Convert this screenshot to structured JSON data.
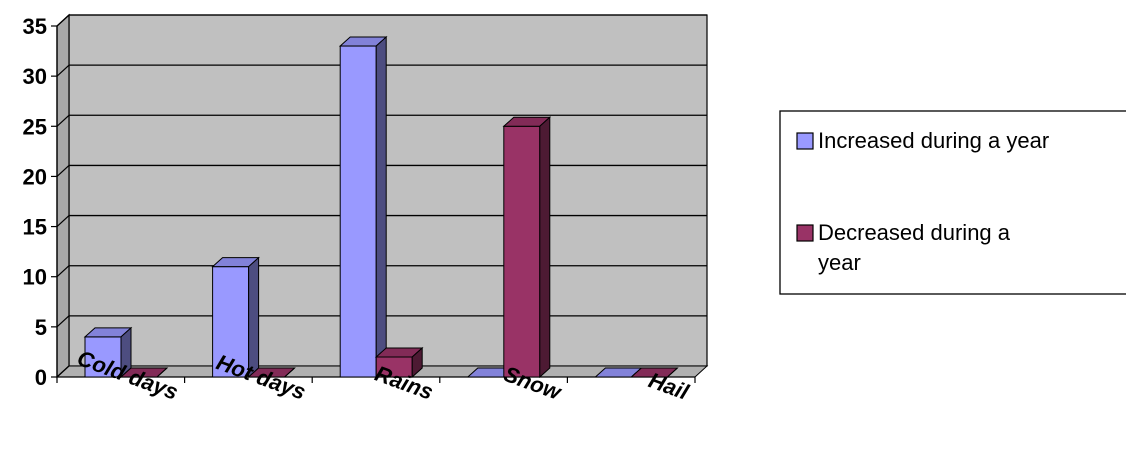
{
  "chart_data": {
    "type": "bar",
    "categories": [
      "Cold days",
      "Hot days",
      "Rains",
      "Snow",
      "Hail"
    ],
    "series": [
      {
        "name": "Increased during a year",
        "values": [
          4,
          11,
          33,
          0,
          0
        ],
        "color": "#9999ff"
      },
      {
        "name": "Decreased during a year",
        "values": [
          0,
          0,
          2,
          25,
          0
        ],
        "color": "#993366"
      }
    ],
    "y_ticks": [
      "0",
      "5",
      "10",
      "15",
      "20",
      "25",
      "30",
      "35"
    ],
    "ylim": [
      0,
      35
    ],
    "grid": true,
    "legend_position": "right",
    "wall_color": "#c0c0c0",
    "style": "3d clustered column"
  }
}
